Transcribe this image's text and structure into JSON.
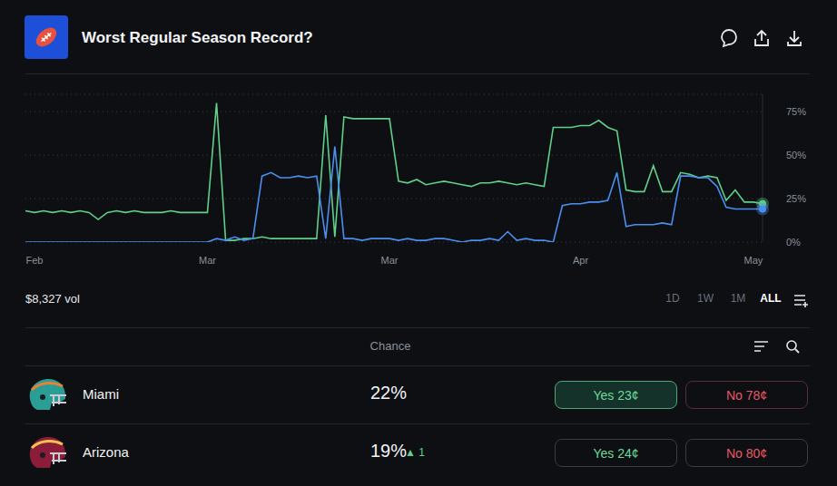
{
  "header": {
    "title": "Worst Regular Season Record?"
  },
  "chart_data": {
    "type": "line",
    "categories": [
      null,
      "Feb",
      null,
      null,
      null,
      null,
      null,
      null,
      null,
      null,
      null,
      null,
      null,
      null,
      null,
      null,
      null,
      null,
      null,
      null,
      "Mar",
      null,
      null,
      null,
      null,
      null,
      null,
      null,
      null,
      null,
      null,
      null,
      null,
      null,
      null,
      null,
      null,
      null,
      null,
      null,
      "Mar",
      null,
      null,
      null,
      null,
      null,
      null,
      null,
      null,
      null,
      null,
      null,
      null,
      null,
      null,
      null,
      null,
      null,
      null,
      null,
      null,
      "Apr",
      null,
      null,
      null,
      null,
      null,
      null,
      null,
      null,
      null,
      null,
      null,
      null,
      null,
      null,
      null,
      null,
      null,
      null,
      "May",
      null
    ],
    "series": [
      {
        "name": "Miami",
        "color": "#5fcf8a",
        "marker": "end",
        "values": [
          18,
          17,
          18,
          17,
          18,
          17,
          18,
          17,
          13,
          17,
          18,
          17,
          18,
          17,
          17,
          17,
          18,
          17,
          17,
          17,
          17,
          80,
          1,
          1,
          2,
          2,
          3,
          2,
          2,
          2,
          2,
          2,
          2,
          73,
          3,
          72,
          71,
          71,
          71,
          71,
          71,
          35,
          34,
          36,
          33,
          34,
          35,
          34,
          33,
          32,
          34,
          34,
          35,
          34,
          33,
          34,
          33,
          32,
          66,
          66,
          66,
          67,
          67,
          70,
          66,
          64,
          30,
          29,
          29,
          44,
          29,
          29,
          40,
          39,
          37,
          38,
          37,
          24,
          30,
          23,
          23,
          22
        ]
      },
      {
        "name": "Arizona",
        "color": "#4a8ff0",
        "marker": "end",
        "values": [
          0,
          0,
          0,
          0,
          0,
          0,
          0,
          0,
          0,
          0,
          0,
          0,
          0,
          0,
          0,
          0,
          0,
          0,
          0,
          0,
          0,
          2,
          1,
          3,
          1,
          2,
          38,
          40,
          37,
          37,
          38,
          37,
          38,
          2,
          55,
          2,
          2,
          1,
          2,
          2,
          2,
          1,
          2,
          1,
          1,
          2,
          2,
          1,
          0,
          1,
          1,
          2,
          1,
          6,
          1,
          2,
          1,
          1,
          0,
          21,
          22,
          22,
          23,
          23,
          24,
          40,
          9,
          10,
          10,
          10,
          11,
          10,
          38,
          38,
          37,
          37,
          32,
          20,
          19,
          19,
          19,
          19
        ]
      }
    ],
    "ylim": [
      0,
      85
    ],
    "yticks": [
      {
        "value": 0,
        "label": "0%"
      },
      {
        "value": 25,
        "label": "25%"
      },
      {
        "value": 50,
        "label": "50%"
      },
      {
        "value": 75,
        "label": "75%"
      }
    ],
    "grid": true
  },
  "volume": "$8,327 vol",
  "ranges": {
    "options": [
      "1D",
      "1W",
      "1M",
      "ALL"
    ],
    "selected": "ALL"
  },
  "table": {
    "header": "Chance",
    "rows": [
      {
        "name": "Miami",
        "chance": "22%",
        "yes": "Yes 23¢",
        "no": "No 78¢"
      },
      {
        "name": "Arizona",
        "chance": "19%",
        "change": "▲ 1",
        "yes": "Yes 24¢",
        "no": "No 80¢"
      }
    ]
  }
}
